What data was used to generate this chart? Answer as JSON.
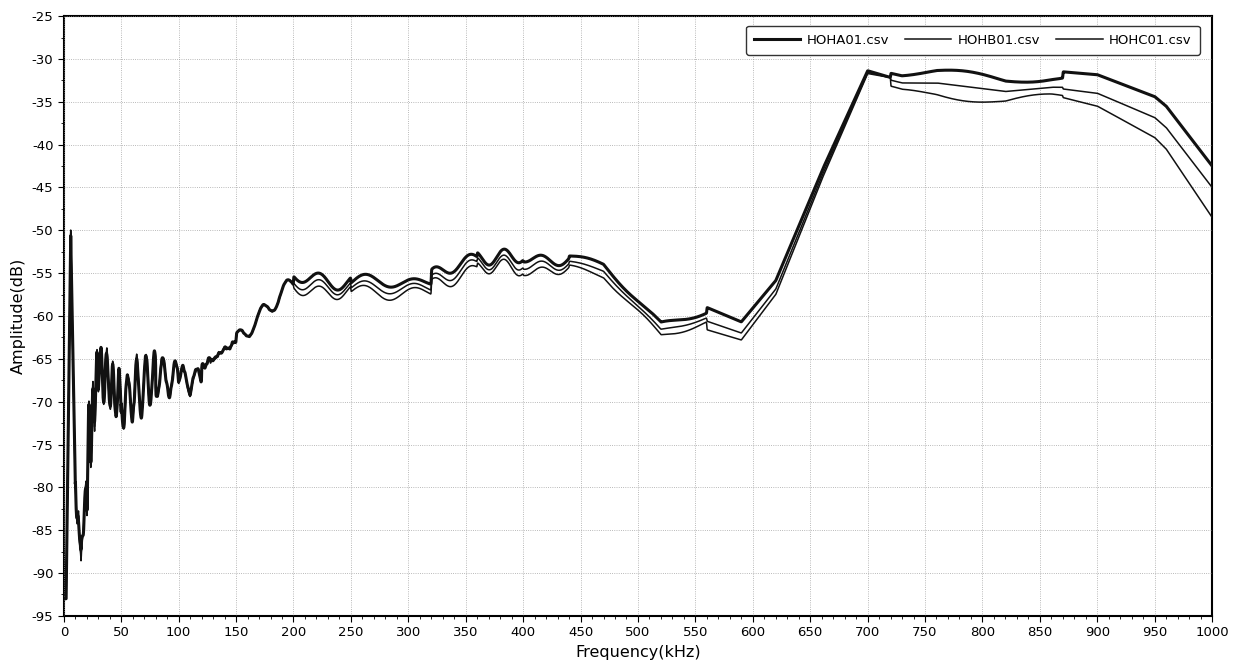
{
  "xlabel": "Frequency(kHz)",
  "ylabel": "Amplitude(dB)",
  "xlim": [
    0,
    1000
  ],
  "ylim": [
    -95,
    -25
  ],
  "xticks": [
    0,
    50,
    100,
    150,
    200,
    250,
    300,
    350,
    400,
    450,
    500,
    550,
    600,
    650,
    700,
    750,
    800,
    850,
    900,
    950,
    1000
  ],
  "yticks": [
    -95,
    -90,
    -85,
    -80,
    -75,
    -70,
    -65,
    -60,
    -55,
    -50,
    -45,
    -40,
    -35,
    -30,
    -25
  ],
  "legend_labels": [
    "HOHA01.csv",
    "HOHB01.csv",
    "HOHC01.csv"
  ],
  "background_color": "#ffffff",
  "grid_color": "#999999"
}
